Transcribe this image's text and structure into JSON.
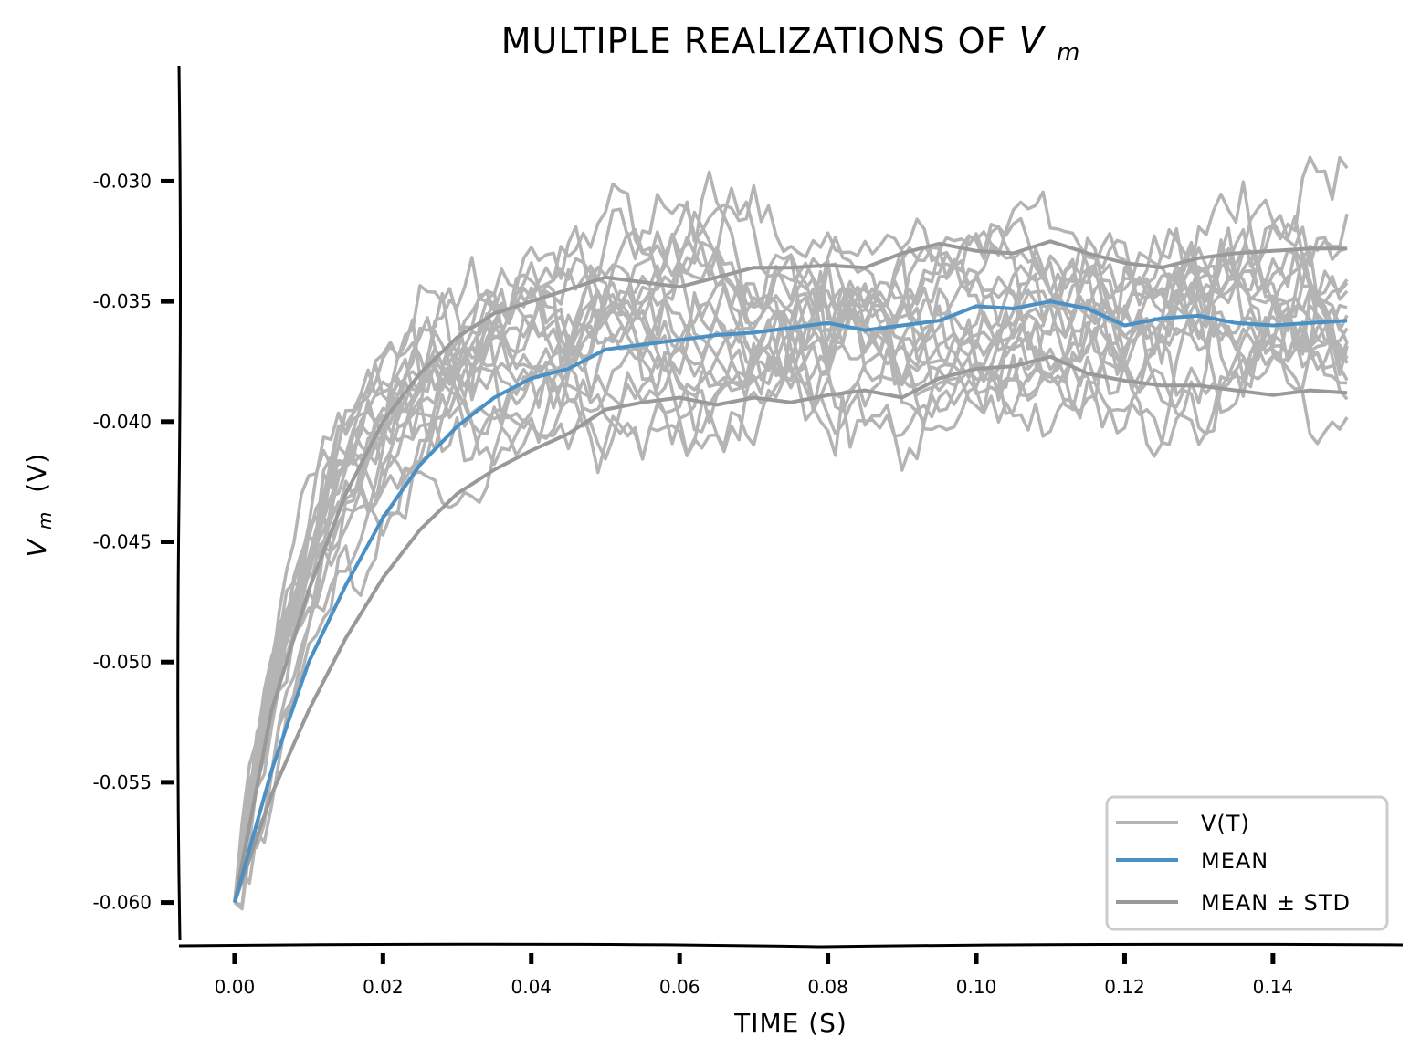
{
  "chart_data": {
    "type": "line",
    "title": "MULTIPLE REALIZATIONS OF Vm",
    "title_main": "MULTIPLE REALIZATIONS OF ",
    "title_math": "V",
    "title_math_sub": "m",
    "xlabel": "TIME (S)",
    "ylabel_math": "V",
    "ylabel_math_sub": "m",
    "ylabel_unit": "(V)",
    "xlim": [
      -0.0075,
      0.1575
    ],
    "ylim": [
      -0.0618,
      -0.0252
    ],
    "xticks": [
      0.0,
      0.02,
      0.04,
      0.06,
      0.08,
      0.1,
      0.12,
      0.14
    ],
    "xtick_labels": [
      "0.00",
      "0.02",
      "0.04",
      "0.06",
      "0.08",
      "0.10",
      "0.12",
      "0.14"
    ],
    "yticks": [
      -0.06,
      -0.055,
      -0.05,
      -0.045,
      -0.04,
      -0.035,
      -0.03
    ],
    "ytick_labels": [
      "-0.060",
      "-0.055",
      "-0.050",
      "-0.045",
      "-0.040",
      "-0.035",
      "-0.030"
    ],
    "grid": false,
    "legend_position": "bottom-right",
    "legend": [
      "V(T)",
      "MEAN",
      "MEAN ± STD"
    ],
    "colors": {
      "realization": "#b4b4b4",
      "mean": "#4a90c4",
      "std": "#999999"
    },
    "realizations": {
      "count": 20,
      "v_init": -0.06,
      "v_rest": -0.0358,
      "tau": 0.012,
      "t_end": 0.15,
      "dt": 0.001,
      "noise_sd": 0.0014
    },
    "series": [
      {
        "name": "MEAN",
        "x": [
          0.0,
          0.005,
          0.01,
          0.015,
          0.02,
          0.025,
          0.03,
          0.035,
          0.04,
          0.045,
          0.05,
          0.055,
          0.06,
          0.065,
          0.07,
          0.075,
          0.08,
          0.085,
          0.09,
          0.095,
          0.1,
          0.105,
          0.11,
          0.115,
          0.12,
          0.125,
          0.13,
          0.135,
          0.14,
          0.145,
          0.15
        ],
        "values": [
          -0.06,
          -0.0545,
          -0.05,
          -0.0468,
          -0.044,
          -0.0418,
          -0.0402,
          -0.039,
          -0.0382,
          -0.0378,
          -0.037,
          -0.0368,
          -0.0366,
          -0.0364,
          -0.0363,
          -0.0361,
          -0.0359,
          -0.0362,
          -0.036,
          -0.0358,
          -0.0352,
          -0.0353,
          -0.035,
          -0.0353,
          -0.036,
          -0.0357,
          -0.0356,
          -0.0359,
          -0.036,
          -0.0359,
          -0.0358
        ]
      },
      {
        "name": "MEAN + STD",
        "x": [
          0.0,
          0.005,
          0.01,
          0.015,
          0.02,
          0.025,
          0.03,
          0.035,
          0.04,
          0.045,
          0.05,
          0.055,
          0.06,
          0.065,
          0.07,
          0.075,
          0.08,
          0.085,
          0.09,
          0.095,
          0.1,
          0.105,
          0.11,
          0.115,
          0.12,
          0.125,
          0.13,
          0.135,
          0.14,
          0.145,
          0.15
        ],
        "values": [
          -0.06,
          -0.052,
          -0.047,
          -0.043,
          -0.04,
          -0.038,
          -0.0365,
          -0.0355,
          -0.035,
          -0.0345,
          -0.034,
          -0.0342,
          -0.0344,
          -0.034,
          -0.0336,
          -0.0336,
          -0.0335,
          -0.0336,
          -0.033,
          -0.0326,
          -0.0329,
          -0.033,
          -0.0325,
          -0.033,
          -0.0334,
          -0.0336,
          -0.0332,
          -0.033,
          -0.0329,
          -0.0328,
          -0.0328
        ]
      },
      {
        "name": "MEAN - STD",
        "x": [
          0.0,
          0.005,
          0.01,
          0.015,
          0.02,
          0.025,
          0.03,
          0.035,
          0.04,
          0.045,
          0.05,
          0.055,
          0.06,
          0.065,
          0.07,
          0.075,
          0.08,
          0.085,
          0.09,
          0.095,
          0.1,
          0.105,
          0.11,
          0.115,
          0.12,
          0.125,
          0.13,
          0.135,
          0.14,
          0.145,
          0.15
        ],
        "values": [
          -0.06,
          -0.0555,
          -0.052,
          -0.049,
          -0.0465,
          -0.0445,
          -0.043,
          -0.042,
          -0.0412,
          -0.0405,
          -0.0395,
          -0.0392,
          -0.039,
          -0.0393,
          -0.039,
          -0.0392,
          -0.0389,
          -0.0387,
          -0.039,
          -0.0382,
          -0.0378,
          -0.0377,
          -0.0373,
          -0.038,
          -0.0383,
          -0.0385,
          -0.0385,
          -0.0387,
          -0.0389,
          -0.0387,
          -0.0388
        ]
      }
    ]
  }
}
